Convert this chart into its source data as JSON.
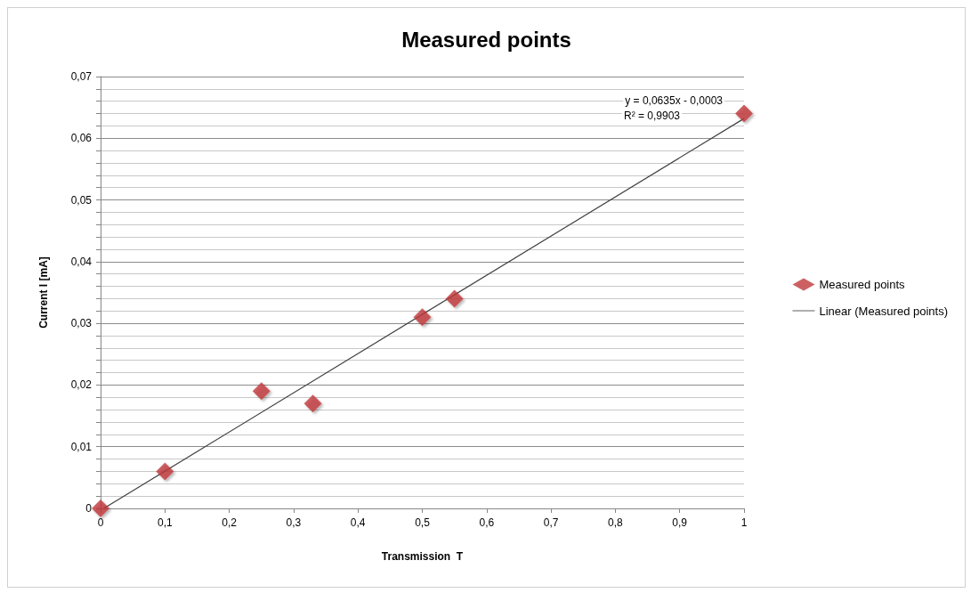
{
  "chart_data": {
    "type": "scatter",
    "title": "Measured points",
    "xlabel": "Transmission  T",
    "ylabel": "Current I [mA]",
    "xlim": [
      0,
      1
    ],
    "xticks": [
      0,
      {
        "value": 0.1,
        "label": "0,1"
      },
      {
        "value": 0.2,
        "label": "0,2"
      },
      {
        "value": 0.3,
        "label": "0,3"
      },
      {
        "value": 0.4,
        "label": "0,4"
      },
      {
        "value": 0.5,
        "label": "0,5"
      },
      {
        "value": 0.6,
        "label": "0,6"
      },
      {
        "value": 0.7,
        "label": "0,7"
      },
      {
        "value": 0.8,
        "label": "0,8"
      },
      {
        "value": 0.9,
        "label": "0,9"
      },
      1
    ],
    "ylim": [
      0,
      0.07
    ],
    "yticks": [
      0,
      {
        "value": 0.002,
        "label": null
      },
      {
        "value": 0.004,
        "label": null
      },
      {
        "value": 0.006,
        "label": null
      },
      {
        "value": 0.008,
        "label": null
      },
      {
        "value": 0.01,
        "label": "0,01"
      },
      {
        "value": 0.012,
        "label": null
      },
      {
        "value": 0.014,
        "label": null
      },
      {
        "value": 0.016,
        "label": null
      },
      {
        "value": 0.018,
        "label": null
      },
      {
        "value": 0.02,
        "label": "0,02"
      },
      {
        "value": 0.022,
        "label": null
      },
      {
        "value": 0.024,
        "label": null
      },
      {
        "value": 0.026,
        "label": null
      },
      {
        "value": 0.028,
        "label": null
      },
      {
        "value": 0.03,
        "label": "0,03"
      },
      {
        "value": 0.032,
        "label": null
      },
      {
        "value": 0.034,
        "label": null
      },
      {
        "value": 0.036,
        "label": null
      },
      {
        "value": 0.038,
        "label": null
      },
      {
        "value": 0.04,
        "label": "0,04"
      },
      {
        "value": 0.042,
        "label": null
      },
      {
        "value": 0.044,
        "label": null
      },
      {
        "value": 0.046,
        "label": null
      },
      {
        "value": 0.048,
        "label": null
      },
      {
        "value": 0.05,
        "label": "0,05"
      },
      {
        "value": 0.052,
        "label": null
      },
      {
        "value": 0.054,
        "label": null
      },
      {
        "value": 0.056,
        "label": null
      },
      {
        "value": 0.058,
        "label": null
      },
      {
        "value": 0.06,
        "label": "0,06"
      },
      {
        "value": 0.062,
        "label": null
      },
      {
        "value": 0.064,
        "label": null
      },
      {
        "value": 0.066,
        "label": null
      },
      {
        "value": 0.068,
        "label": null
      },
      {
        "value": 0.07,
        "label": "0,07"
      }
    ],
    "grid": "y",
    "legend": "right",
    "marker": "diamond",
    "series": [
      {
        "name": "Measured points",
        "type": "scatter",
        "color": "#c0393b",
        "x": [
          0,
          0.1,
          0.25,
          0.33,
          0.5,
          0.55,
          1
        ],
        "values": [
          0,
          0.006,
          0.019,
          0.017,
          0.031,
          0.034,
          0.064
        ]
      },
      {
        "name": "Linear (Measured points)",
        "type": "line",
        "marker": "none",
        "color": "#404040",
        "x": [
          0.005,
          1
        ],
        "values": [
          0,
          0.0632
        ]
      }
    ],
    "annotations": [
      "y = 0,0635x - 0,0003",
      "R² = 0,9903"
    ]
  }
}
